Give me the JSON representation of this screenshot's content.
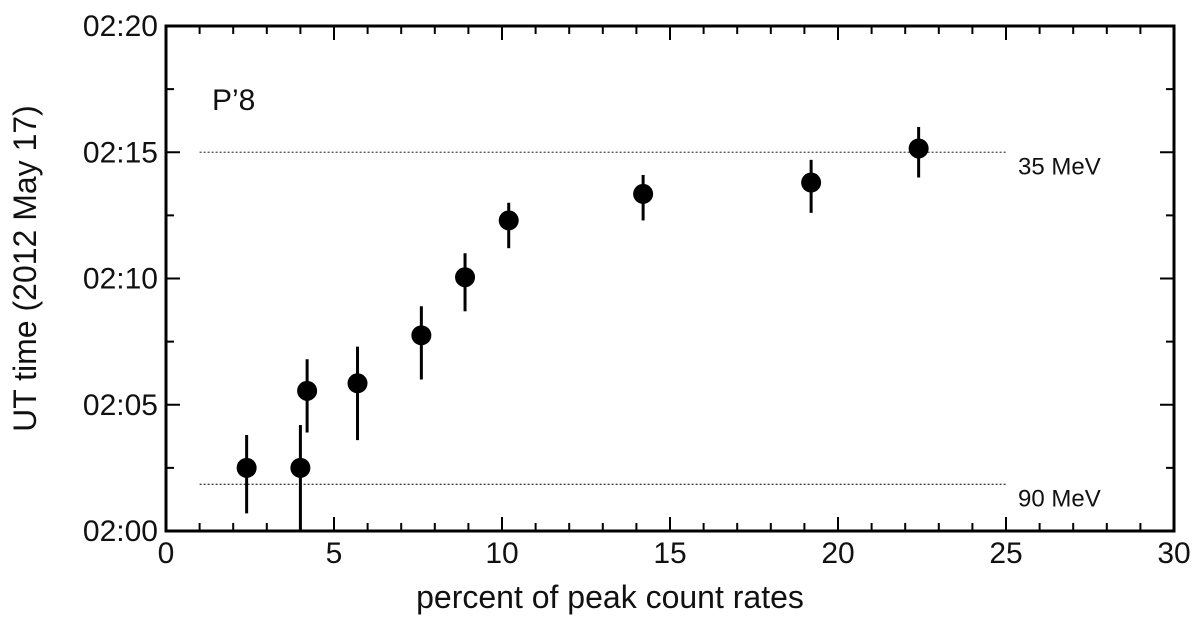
{
  "chart_data": {
    "type": "scatter",
    "panel_label": "P’8",
    "xlabel": "percent of peak count rates",
    "ylabel": "UT time (2012 May 17)",
    "xlim": [
      0,
      30
    ],
    "ylim_minutes": [
      0,
      20
    ],
    "x_ticks": [
      0,
      5,
      10,
      15,
      20,
      25,
      30
    ],
    "x_tick_labels": [
      "0",
      "5",
      "10",
      "15",
      "20",
      "25",
      "30"
    ],
    "y_ticks_minutes": [
      0,
      5,
      10,
      15,
      20
    ],
    "y_tick_labels": [
      "02:00",
      "02:05",
      "02:10",
      "02:15",
      "02:20"
    ],
    "reference_lines": [
      {
        "label": "35 MeV",
        "y_minutes": 15.0,
        "x_range": [
          1,
          25
        ]
      },
      {
        "label": "90 MeV",
        "y_minutes": 1.85,
        "x_range": [
          1,
          25
        ]
      }
    ],
    "points": [
      {
        "x": 2.4,
        "y": 2.5,
        "y_low": 0.7,
        "y_high": 3.8
      },
      {
        "x": 4.0,
        "y": 2.5,
        "y_low": 0.0,
        "y_high": 4.2
      },
      {
        "x": 4.2,
        "y": 5.55,
        "y_low": 3.9,
        "y_high": 6.8
      },
      {
        "x": 5.7,
        "y": 5.85,
        "y_low": 3.6,
        "y_high": 7.3
      },
      {
        "x": 7.6,
        "y": 7.75,
        "y_low": 6.0,
        "y_high": 8.9
      },
      {
        "x": 8.9,
        "y": 10.05,
        "y_low": 8.7,
        "y_high": 11.0
      },
      {
        "x": 10.2,
        "y": 12.3,
        "y_low": 11.2,
        "y_high": 13.0
      },
      {
        "x": 14.2,
        "y": 13.35,
        "y_low": 12.3,
        "y_high": 14.1
      },
      {
        "x": 19.2,
        "y": 13.8,
        "y_low": 12.6,
        "y_high": 14.7
      },
      {
        "x": 22.4,
        "y": 15.15,
        "y_low": 14.0,
        "y_high": 16.0
      }
    ],
    "grid": false,
    "marker_color": "#000000"
  }
}
